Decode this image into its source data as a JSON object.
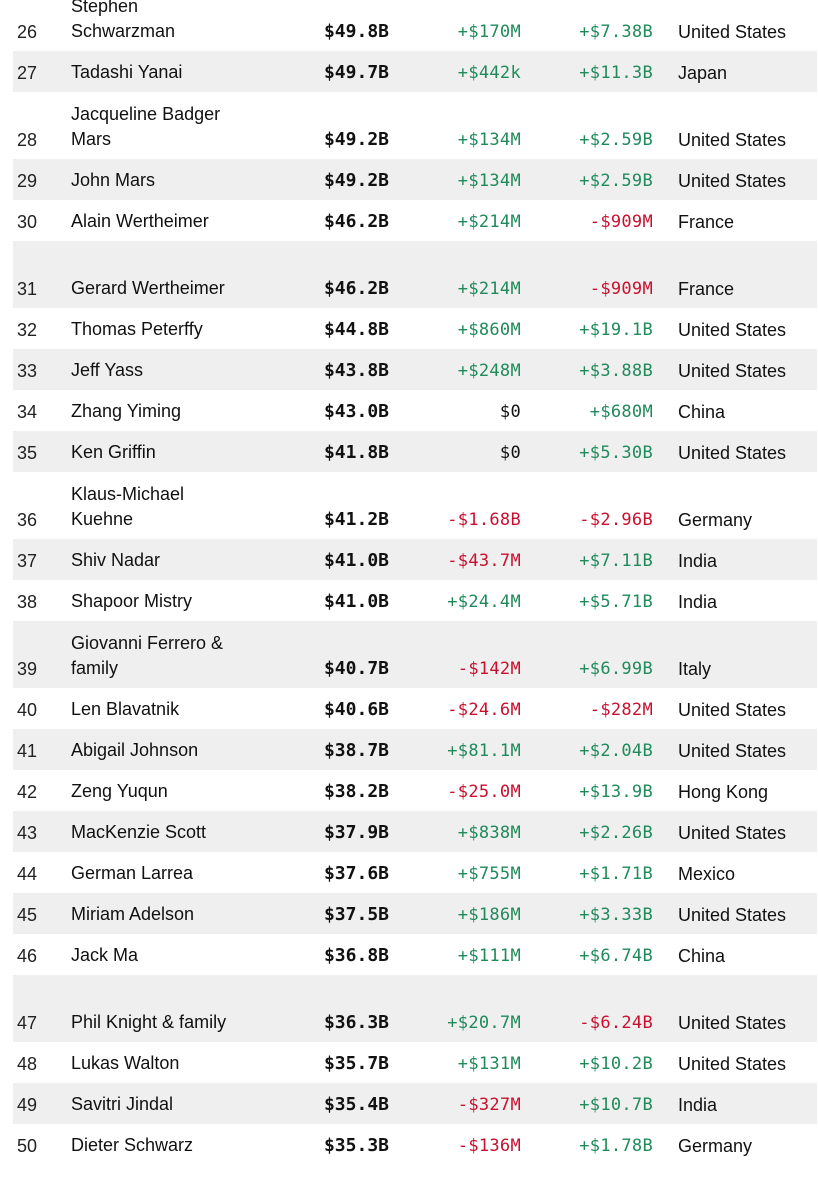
{
  "rows": [
    {
      "rank": "26",
      "name": "Stephen Schwarzman",
      "worth": "$49.8B",
      "last": "+$170M",
      "ytd": "+$7.38B",
      "country": "United States"
    },
    {
      "rank": "27",
      "name": "Tadashi Yanai",
      "worth": "$49.7B",
      "last": "+$442k",
      "ytd": "+$11.3B",
      "country": "Japan"
    },
    {
      "rank": "28",
      "name": "Jacqueline Badger Mars",
      "worth": "$49.2B",
      "last": "+$134M",
      "ytd": "+$2.59B",
      "country": "United States"
    },
    {
      "rank": "29",
      "name": "John Mars",
      "worth": "$49.2B",
      "last": "+$134M",
      "ytd": "+$2.59B",
      "country": "United States"
    },
    {
      "rank": "30",
      "name": "Alain Wertheimer",
      "worth": "$46.2B",
      "last": "+$214M",
      "ytd": "-$909M",
      "country": "France"
    },
    {
      "rank": "31",
      "name": "Gerard Wertheimer",
      "worth": "$46.2B",
      "last": "+$214M",
      "ytd": "-$909M",
      "country": "France"
    },
    {
      "rank": "32",
      "name": "Thomas Peterffy",
      "worth": "$44.8B",
      "last": "+$860M",
      "ytd": "+$19.1B",
      "country": "United States"
    },
    {
      "rank": "33",
      "name": "Jeff Yass",
      "worth": "$43.8B",
      "last": "+$248M",
      "ytd": "+$3.88B",
      "country": "United States"
    },
    {
      "rank": "34",
      "name": "Zhang Yiming",
      "worth": "$43.0B",
      "last": "$0",
      "ytd": "+$680M",
      "country": "China"
    },
    {
      "rank": "35",
      "name": "Ken Griffin",
      "worth": "$41.8B",
      "last": "$0",
      "ytd": "+$5.30B",
      "country": "United States"
    },
    {
      "rank": "36",
      "name": "Klaus-Michael Kuehne",
      "worth": "$41.2B",
      "last": "-$1.68B",
      "ytd": "-$2.96B",
      "country": "Germany"
    },
    {
      "rank": "37",
      "name": "Shiv Nadar",
      "worth": "$41.0B",
      "last": "-$43.7M",
      "ytd": "+$7.11B",
      "country": "India"
    },
    {
      "rank": "38",
      "name": "Shapoor Mistry",
      "worth": "$41.0B",
      "last": "+$24.4M",
      "ytd": "+$5.71B",
      "country": "India"
    },
    {
      "rank": "39",
      "name": "Giovanni Ferrero & family",
      "worth": "$40.7B",
      "last": "-$142M",
      "ytd": "+$6.99B",
      "country": "Italy"
    },
    {
      "rank": "40",
      "name": "Len Blavatnik",
      "worth": "$40.6B",
      "last": "-$24.6M",
      "ytd": "-$282M",
      "country": "United States"
    },
    {
      "rank": "41",
      "name": "Abigail Johnson",
      "worth": "$38.7B",
      "last": "+$81.1M",
      "ytd": "+$2.04B",
      "country": "United States"
    },
    {
      "rank": "42",
      "name": "Zeng Yuqun",
      "worth": "$38.2B",
      "last": "-$25.0M",
      "ytd": "+$13.9B",
      "country": "Hong Kong"
    },
    {
      "rank": "43",
      "name": "MacKenzie Scott",
      "worth": "$37.9B",
      "last": "+$838M",
      "ytd": "+$2.26B",
      "country": "United States"
    },
    {
      "rank": "44",
      "name": "German Larrea",
      "worth": "$37.6B",
      "last": "+$755M",
      "ytd": "+$1.71B",
      "country": "Mexico"
    },
    {
      "rank": "45",
      "name": "Miriam Adelson",
      "worth": "$37.5B",
      "last": "+$186M",
      "ytd": "+$3.33B",
      "country": "United States"
    },
    {
      "rank": "46",
      "name": "Jack Ma",
      "worth": "$36.8B",
      "last": "+$111M",
      "ytd": "+$6.74B",
      "country": "China"
    },
    {
      "rank": "47",
      "name": "Phil Knight & family",
      "worth": "$36.3B",
      "last": "+$20.7M",
      "ytd": "-$6.24B",
      "country": "United States"
    },
    {
      "rank": "48",
      "name": "Lukas Walton",
      "worth": "$35.7B",
      "last": "+$131M",
      "ytd": "+$10.2B",
      "country": "United States"
    },
    {
      "rank": "49",
      "name": "Savitri Jindal",
      "worth": "$35.4B",
      "last": "-$327M",
      "ytd": "+$10.7B",
      "country": "India"
    },
    {
      "rank": "50",
      "name": "Dieter Schwarz",
      "worth": "$35.3B",
      "last": "-$136M",
      "ytd": "+$1.78B",
      "country": "Germany"
    }
  ],
  "colors": {
    "positive": "#1f8a5a",
    "negative": "#c8102e",
    "row_shade": "#efefef"
  }
}
